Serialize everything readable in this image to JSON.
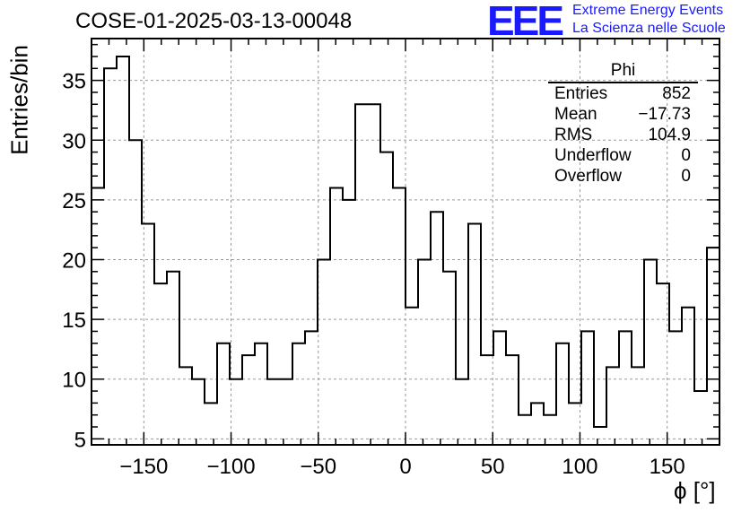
{
  "title": "COSE-01-2025-03-13-00048",
  "logo": {
    "mark": "EEE",
    "line1": "Extreme Energy Events",
    "line2": "La Scienza nelle Scuole"
  },
  "stats_box": {
    "name": "Phi",
    "rows": [
      {
        "label": "Entries",
        "value": "852"
      },
      {
        "label": "Mean",
        "value": "−17.73"
      },
      {
        "label": "RMS",
        "value": "104.9"
      },
      {
        "label": "Underflow",
        "value": "0"
      },
      {
        "label": "Overflow",
        "value": "0"
      }
    ]
  },
  "chart_data": {
    "type": "bar",
    "histogram": "step",
    "xlabel": "ϕ [°]",
    "ylabel": "Entries/bin",
    "xlim": [
      -180,
      180
    ],
    "ylim": [
      4.5,
      38.5
    ],
    "bin_width": 7.2,
    "x_ticks": [
      -150,
      -100,
      -50,
      0,
      50,
      100,
      150
    ],
    "x_tick_labels": [
      "−150",
      "−100",
      "−50",
      "0",
      "50",
      "100",
      "150"
    ],
    "y_ticks": [
      5,
      10,
      15,
      20,
      25,
      30,
      35
    ],
    "grid": true,
    "values": [
      26,
      36,
      37,
      30,
      23,
      18,
      19,
      11,
      10,
      8,
      13,
      10,
      12,
      13,
      10,
      10,
      13,
      14,
      20,
      26,
      25,
      33,
      33,
      29,
      26,
      16,
      20,
      24,
      19,
      10,
      23,
      12,
      14,
      12,
      7,
      8,
      7,
      13,
      8,
      14,
      6,
      11,
      14,
      11,
      20,
      18,
      14,
      16,
      9,
      21
    ],
    "line_color": "#000000",
    "grid_color": "#999999"
  }
}
